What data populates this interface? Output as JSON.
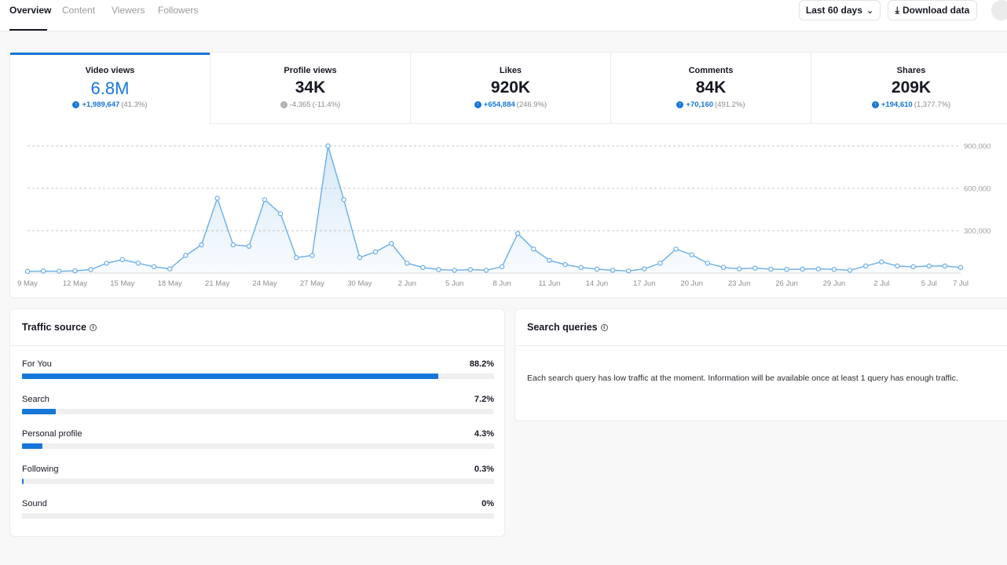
{
  "nav": {
    "tabs": [
      {
        "label": "Overview",
        "active": true
      },
      {
        "label": "Content",
        "active": false
      },
      {
        "label": "Viewers",
        "active": false
      },
      {
        "label": "Followers",
        "active": false
      }
    ],
    "date_range": "Last 60 days",
    "download_label": "Download data"
  },
  "metrics": [
    {
      "label": "Video views",
      "value": "6.8M",
      "change": "+1,989,647",
      "change_pct": "(41.3%)",
      "direction": "up",
      "active": true
    },
    {
      "label": "Profile views",
      "value": "34K",
      "change": "-4,365",
      "change_pct": "(-11.4%)",
      "direction": "down",
      "active": false
    },
    {
      "label": "Likes",
      "value": "920K",
      "change": "+654,884",
      "change_pct": "(246.9%)",
      "direction": "up",
      "active": false
    },
    {
      "label": "Comments",
      "value": "84K",
      "change": "+70,160",
      "change_pct": "(491.2%)",
      "direction": "up",
      "active": false
    },
    {
      "label": "Shares",
      "value": "209K",
      "change": "+194,610",
      "change_pct": "(1,377.7%)",
      "direction": "up",
      "active": false
    }
  ],
  "chart_data": {
    "type": "area",
    "title": "",
    "xlabel": "",
    "ylabel": "",
    "ylim": [
      0,
      900000
    ],
    "yticks": [
      300000,
      600000,
      900000
    ],
    "ytick_labels": [
      "300,000",
      "600,000",
      "900,000"
    ],
    "grid": true,
    "x_tick_labels": [
      "9 May",
      "12 May",
      "15 May",
      "18 May",
      "21 May",
      "24 May",
      "27 May",
      "30 May",
      "2 Jun",
      "5 Jun",
      "8 Jun",
      "11 Jun",
      "14 Jun",
      "17 Jun",
      "20 Jun",
      "23 Jun",
      "26 Jun",
      "29 Jun",
      "2 Jul",
      "5 Jul",
      "7 Jul"
    ],
    "x_tick_index": [
      0,
      3,
      6,
      9,
      12,
      15,
      18,
      21,
      24,
      27,
      30,
      33,
      36,
      39,
      42,
      45,
      48,
      51,
      54,
      57,
      59
    ],
    "x": [
      "9 May",
      "10 May",
      "11 May",
      "12 May",
      "13 May",
      "14 May",
      "15 May",
      "16 May",
      "17 May",
      "18 May",
      "19 May",
      "20 May",
      "21 May",
      "22 May",
      "23 May",
      "24 May",
      "25 May",
      "26 May",
      "27 May",
      "28 May",
      "29 May",
      "30 May",
      "31 May",
      "1 Jun",
      "2 Jun",
      "3 Jun",
      "4 Jun",
      "5 Jun",
      "6 Jun",
      "7 Jun",
      "8 Jun",
      "9 Jun",
      "10 Jun",
      "11 Jun",
      "12 Jun",
      "13 Jun",
      "14 Jun",
      "15 Jun",
      "16 Jun",
      "17 Jun",
      "18 Jun",
      "19 Jun",
      "20 Jun",
      "21 Jun",
      "22 Jun",
      "23 Jun",
      "24 Jun",
      "25 Jun",
      "26 Jun",
      "27 Jun",
      "28 Jun",
      "29 Jun",
      "30 Jun",
      "1 Jul",
      "2 Jul",
      "3 Jul",
      "4 Jul",
      "5 Jul",
      "6 Jul",
      "7 Jul"
    ],
    "series": [
      {
        "values": [
          12000,
          14000,
          13000,
          16000,
          25000,
          70000,
          95000,
          70000,
          45000,
          30000,
          125000,
          200000,
          530000,
          200000,
          190000,
          520000,
          420000,
          110000,
          125000,
          900000,
          520000,
          110000,
          150000,
          210000,
          70000,
          40000,
          25000,
          20000,
          25000,
          20000,
          45000,
          280000,
          170000,
          90000,
          60000,
          40000,
          28000,
          20000,
          15000,
          30000,
          70000,
          170000,
          130000,
          70000,
          40000,
          30000,
          35000,
          28000,
          26000,
          28000,
          30000,
          26000,
          20000,
          50000,
          80000,
          50000,
          45000,
          50000,
          50000,
          40000
        ]
      }
    ],
    "color": "#6aaee8"
  },
  "traffic_source": {
    "title": "Traffic source",
    "rows": [
      {
        "label": "For You",
        "pct_text": "88.2%",
        "value": 88.2
      },
      {
        "label": "Search",
        "pct_text": "7.2%",
        "value": 7.2
      },
      {
        "label": "Personal profile",
        "pct_text": "4.3%",
        "value": 4.3
      },
      {
        "label": "Following",
        "pct_text": "0.3%",
        "value": 0.3
      },
      {
        "label": "Sound",
        "pct_text": "0%",
        "value": 0
      }
    ]
  },
  "search_queries": {
    "title": "Search queries",
    "message": "Each search query has low traffic at the moment. Information will be available once at least 1 query has enough traffic."
  },
  "colors": {
    "accent": "#1677d8",
    "line": "#6aaee8"
  }
}
